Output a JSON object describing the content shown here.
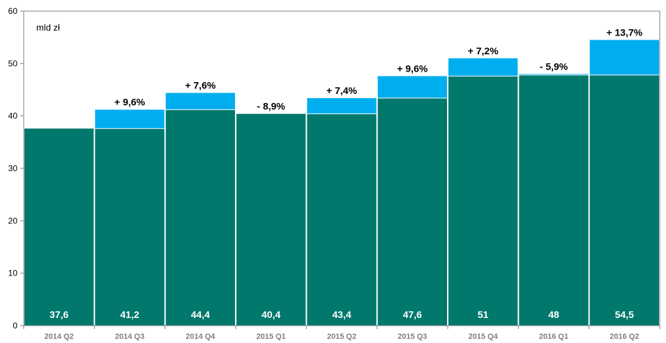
{
  "chart_data": {
    "type": "bar",
    "unit_label": "mld zł",
    "categories": [
      "2014  Q2",
      "2014  Q3",
      "2014  Q4",
      "2015  Q1",
      "2015  Q2",
      "2015  Q3",
      "2015  Q4",
      "2016  Q1",
      "2016  Q2"
    ],
    "values": [
      37.6,
      41.2,
      44.4,
      40.4,
      43.4,
      47.6,
      51,
      48,
      54.5
    ],
    "value_labels": [
      "37,6",
      "41,2",
      "44,4",
      "40,4",
      "43,4",
      "47,6",
      "51",
      "48",
      "54,5"
    ],
    "base_values": [
      37.6,
      37.6,
      41.2,
      40.4,
      40.4,
      43.4,
      47.6,
      47.8,
      47.8
    ],
    "change_labels": [
      "",
      "+ 9,6%",
      "+ 7,6%",
      "- 8,9%",
      "+ 7,4%",
      "+ 9,6%",
      "+ 7,2%",
      "- 5,9%",
      "+ 13,7%"
    ],
    "yticks": [
      "0",
      "10",
      "20",
      "30",
      "40",
      "50",
      "60"
    ],
    "ylim": [
      0,
      60
    ],
    "grid": false,
    "legend": "none",
    "colors": {
      "base": "#00786c",
      "increase": "#00aeef",
      "separator": "#ffffff",
      "axis": "#808080"
    }
  }
}
